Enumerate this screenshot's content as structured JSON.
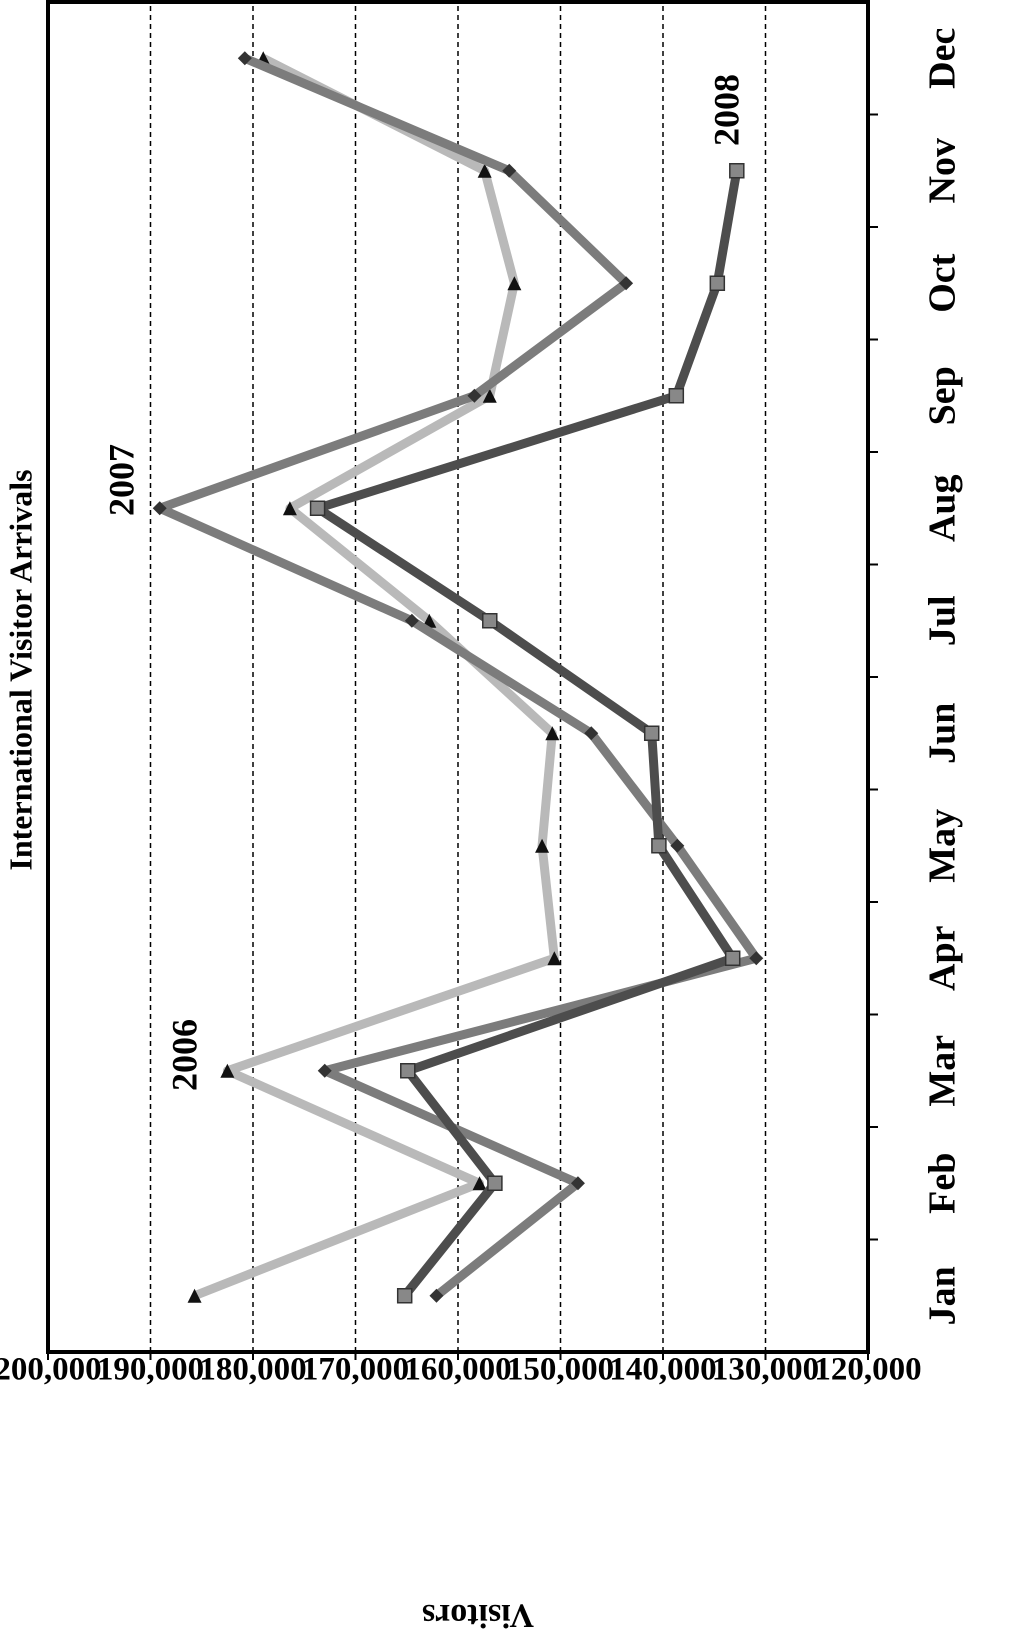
{
  "chart_data": {
    "type": "line",
    "title": "International Visitor Arrivals",
    "y_label": "Visitors",
    "categories": [
      "Jan",
      "Feb",
      "Mar",
      "Apr",
      "May",
      "Jun",
      "Jul",
      "Aug",
      "Sep",
      "Oct",
      "Nov",
      "Dec"
    ],
    "series": [
      {
        "name": "2006",
        "color": "#b9b9b9",
        "marker": "triangle",
        "values": [
          185700,
          157900,
          182500,
          150600,
          151800,
          150800,
          162800,
          176400,
          156900,
          154500,
          157400,
          179000
        ]
      },
      {
        "name": "2007",
        "color": "#7c7c7c",
        "marker": "diamond",
        "values": [
          162100,
          148300,
          173000,
          130900,
          138600,
          147000,
          164500,
          189100,
          158400,
          143600,
          155000,
          180800
        ]
      },
      {
        "name": "2008",
        "color": "#4d4d4d",
        "marker": "square",
        "values": [
          165200,
          156400,
          164900,
          133200,
          140400,
          141100,
          156900,
          173700,
          138700,
          134700,
          132800,
          null
        ]
      }
    ],
    "ylim": [
      120000,
      200000
    ],
    "yticks": [
      {
        "value": 120000,
        "label": "120,000"
      },
      {
        "value": 130000,
        "label": "130,000"
      },
      {
        "value": 140000,
        "label": "140,000"
      },
      {
        "value": 150000,
        "label": "150,000"
      },
      {
        "value": 160000,
        "label": "160,000"
      },
      {
        "value": 170000,
        "label": "170,000"
      },
      {
        "value": 180000,
        "label": "180,000"
      },
      {
        "value": 190000,
        "label": "190,000"
      },
      {
        "value": 200000,
        "label": "200,000"
      }
    ],
    "grid": true
  }
}
